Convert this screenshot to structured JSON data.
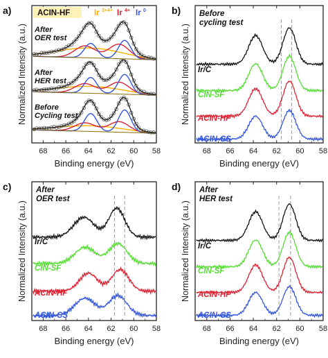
{
  "figure": {
    "panel_labels": [
      "a)",
      "b)",
      "c)",
      "d)"
    ],
    "xlabel": "Binding energy (eV)",
    "ylabel": "Normalized Intensity (a.u.)",
    "tick_labels": [
      "68",
      "66",
      "64",
      "62",
      "60",
      "58"
    ],
    "tick_labels_b": [
      "68",
      "66",
      "64",
      "62",
      "60",
      "58"
    ]
  },
  "colors": {
    "ir_c": "#111111",
    "cin_sf": "#55dd33",
    "acin_hf": "#dd2233",
    "acin_cs": "#3355dd",
    "ir_mixed": "#ffb000",
    "ir4": "#dd2233",
    "ir0": "#3355dd",
    "envelope": "#1a1a1a",
    "points": "#666666",
    "guide": "#999999"
  },
  "chart_data": [
    {
      "panel": "a)",
      "type": "line",
      "xlabel": "Binding energy (eV)",
      "ylabel": "Normalized Intensity (a.u.)",
      "xlim": [
        69,
        58
      ],
      "x_reversed": true,
      "legend": {
        "title": "ACIN-HF",
        "entries": [
          {
            "label": "Ir",
            "sup": "3+4+",
            "color": "#ffb000"
          },
          {
            "label": "Ir",
            "sup": "4+",
            "color": "#dd2233"
          },
          {
            "label": "Ir",
            "sup": "0",
            "color": "#3355dd"
          }
        ],
        "placement": "top"
      },
      "series": [
        {
          "label_lines": [
            "After",
            "OER test"
          ],
          "components": {
            "ir0": [
              [
                60.8,
                0.7,
                0.55
              ],
              [
                63.8,
                0.55,
                0.55
              ]
            ],
            "ir4": [
              [
                61.3,
                0.55,
                0.9
              ],
              [
                64.3,
                0.45,
                0.9
              ]
            ],
            "mixed": [
              [
                62.5,
                0.25,
                2.2
              ],
              [
                65.5,
                0.22,
                2.2
              ]
            ]
          }
        },
        {
          "label_lines": [
            "After",
            "HER test"
          ],
          "components": {
            "ir0": [
              [
                60.8,
                0.75,
                0.55
              ],
              [
                63.8,
                0.6,
                0.55
              ]
            ],
            "ir4": [
              [
                61.3,
                0.45,
                0.9
              ],
              [
                64.3,
                0.36,
                0.9
              ]
            ],
            "mixed": [
              [
                62.5,
                0.18,
                2.2
              ],
              [
                65.5,
                0.15,
                2.2
              ]
            ]
          }
        },
        {
          "label_lines": [
            "Before",
            "Cycling test"
          ],
          "components": {
            "ir0": [
              [
                60.8,
                0.85,
                0.55
              ],
              [
                63.8,
                0.68,
                0.55
              ]
            ],
            "ir4": [
              [
                61.3,
                0.4,
                0.9
              ],
              [
                64.3,
                0.32,
                0.9
              ]
            ],
            "mixed": [
              [
                62.5,
                0.15,
                2.2
              ],
              [
                65.5,
                0.12,
                2.2
              ]
            ]
          }
        }
      ]
    },
    {
      "panel": "b)",
      "type": "line",
      "title_lines": [
        "Before",
        "cycling test"
      ],
      "xlabel": "Binding energy (eV)",
      "ylabel": "Normalized Intensity (a.u.)",
      "xlim": [
        69,
        58
      ],
      "x_reversed": true,
      "guides": [
        61.6,
        60.7
      ],
      "series": [
        {
          "name": "Ir/C",
          "color": "#111111",
          "peaks": [
            [
              63.8,
              0.75,
              0.6
            ],
            [
              60.9,
              0.95,
              0.55
            ]
          ],
          "background": 0.1,
          "noise": 0.04
        },
        {
          "name": "CIN-SF",
          "color": "#55dd33",
          "peaks": [
            [
              63.8,
              0.7,
              0.6
            ],
            [
              60.9,
              0.9,
              0.55
            ]
          ],
          "background": 0.1,
          "noise": 0.04
        },
        {
          "name": "ACIN-HF",
          "color": "#dd2233",
          "peaks": [
            [
              63.8,
              0.72,
              0.6
            ],
            [
              60.9,
              0.92,
              0.55
            ]
          ],
          "background": 0.1,
          "noise": 0.04
        },
        {
          "name": "ACIN-CS",
          "color": "#3355dd",
          "peaks": [
            [
              63.8,
              0.6,
              0.6
            ],
            [
              60.9,
              0.75,
              0.55
            ]
          ],
          "background": 0.1,
          "noise": 0.04
        }
      ]
    },
    {
      "panel": "c)",
      "type": "line",
      "title_lines": [
        "After",
        "OER test"
      ],
      "xlabel": "Binding energy (eV)",
      "ylabel": "Normalized Intensity (a.u.)",
      "xlim": [
        69,
        58
      ],
      "x_reversed": true,
      "guides": [
        61.7,
        60.8
      ],
      "series": [
        {
          "name": "Ir/C",
          "color": "#111111",
          "peaks": [
            [
              64.4,
              0.55,
              0.9
            ],
            [
              61.5,
              0.8,
              0.7
            ]
          ],
          "background": 0.12,
          "noise": 0.06
        },
        {
          "name": "CIN-SF",
          "color": "#55dd33",
          "peaks": [
            [
              64.3,
              0.45,
              0.9
            ],
            [
              61.4,
              0.55,
              0.8
            ]
          ],
          "background": 0.12,
          "noise": 0.06
        },
        {
          "name": "ACIN-HF",
          "color": "#dd2233",
          "peaks": [
            [
              64.0,
              0.5,
              0.8
            ],
            [
              61.2,
              0.6,
              0.75
            ]
          ],
          "background": 0.12,
          "noise": 0.06
        },
        {
          "name": "ACIN-CS",
          "color": "#3355dd",
          "peaks": [
            [
              64.3,
              0.48,
              0.9
            ],
            [
              61.4,
              0.55,
              0.8
            ]
          ],
          "background": 0.12,
          "noise": 0.06
        }
      ]
    },
    {
      "panel": "d)",
      "type": "line",
      "title_lines": [
        "After",
        "HER test"
      ],
      "xlabel": "Binding energy (eV)",
      "ylabel": "Normalized Intensity (a.u.)",
      "xlim": [
        69,
        58
      ],
      "x_reversed": true,
      "guides": [
        61.8,
        60.8
      ],
      "series": [
        {
          "name": "Ir/C",
          "color": "#111111",
          "peaks": [
            [
              63.8,
              0.75,
              0.6
            ],
            [
              60.9,
              0.95,
              0.55
            ]
          ],
          "background": 0.1,
          "noise": 0.04
        },
        {
          "name": "CIN-SF",
          "color": "#55dd33",
          "peaks": [
            [
              63.8,
              0.7,
              0.6
            ],
            [
              60.9,
              0.9,
              0.55
            ]
          ],
          "background": 0.1,
          "noise": 0.04
        },
        {
          "name": "ACIN-HF",
          "color": "#dd2233",
          "peaks": [
            [
              63.8,
              0.72,
              0.6
            ],
            [
              60.9,
              0.92,
              0.55
            ]
          ],
          "background": 0.1,
          "noise": 0.04
        },
        {
          "name": "ACIN-CS",
          "color": "#3355dd",
          "peaks": [
            [
              63.8,
              0.6,
              0.6
            ],
            [
              60.9,
              0.75,
              0.55
            ]
          ],
          "background": 0.1,
          "noise": 0.04
        }
      ]
    }
  ]
}
